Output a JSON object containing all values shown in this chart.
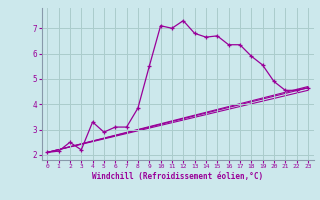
{
  "title": "",
  "xlabel": "Windchill (Refroidissement éolien,°C)",
  "bg_color": "#cce8ec",
  "line_color": "#990099",
  "xlim": [
    -0.5,
    23.5
  ],
  "ylim": [
    1.8,
    7.8
  ],
  "xticks": [
    0,
    1,
    2,
    3,
    4,
    5,
    6,
    7,
    8,
    9,
    10,
    11,
    12,
    13,
    14,
    15,
    16,
    17,
    18,
    19,
    20,
    21,
    22,
    23
  ],
  "yticks": [
    2,
    3,
    4,
    5,
    6,
    7
  ],
  "grid_color": "#aacccc",
  "series": [
    [
      0,
      2.1
    ],
    [
      1,
      2.15
    ],
    [
      2,
      2.5
    ],
    [
      3,
      2.2
    ],
    [
      4,
      3.3
    ],
    [
      5,
      2.9
    ],
    [
      6,
      3.1
    ],
    [
      7,
      3.1
    ],
    [
      8,
      3.85
    ],
    [
      9,
      5.5
    ],
    [
      10,
      7.1
    ],
    [
      11,
      7.0
    ],
    [
      12,
      7.3
    ],
    [
      13,
      6.8
    ],
    [
      14,
      6.65
    ],
    [
      15,
      6.7
    ],
    [
      16,
      6.35
    ],
    [
      17,
      6.35
    ],
    [
      18,
      5.9
    ],
    [
      19,
      5.55
    ],
    [
      20,
      4.9
    ],
    [
      21,
      4.55
    ],
    [
      22,
      4.55
    ],
    [
      23,
      4.65
    ]
  ],
  "ref_lines": [
    [
      [
        0,
        23
      ],
      [
        2.1,
        4.65
      ]
    ],
    [
      [
        0,
        23
      ],
      [
        2.1,
        4.55
      ]
    ],
    [
      [
        0,
        23
      ],
      [
        2.1,
        4.7
      ]
    ]
  ]
}
